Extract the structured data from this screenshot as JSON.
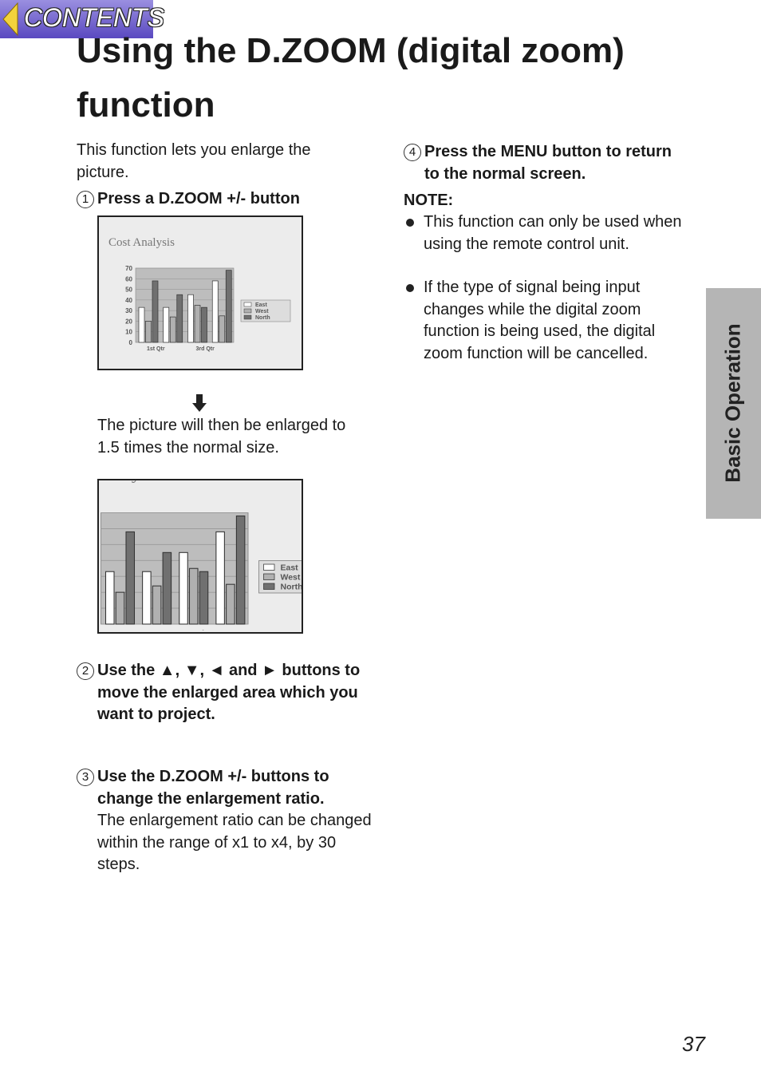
{
  "header": {
    "button": "CONTENTS",
    "title": "Using the D.ZOOM (digital zoom) function"
  },
  "side_tab": "Basic Operation",
  "intro": "This function lets you enlarge the picture.",
  "steps": [
    {
      "number": "1",
      "heading": "Press a D.ZOOM +/- button",
      "body": "The picture will then be enlarged to 1.5 times the normal size."
    },
    {
      "number": "2",
      "heading": "Use the ▲, ▼, ◄ and ► buttons to move the enlarged area which you want to project."
    },
    {
      "number": "3",
      "heading": "Use the D.ZOOM +/- buttons to change the enlargement ratio.",
      "body": "The enlargement ratio can be changed within the range of x1 to x4, by 30 steps."
    },
    {
      "number": "4",
      "heading": "Press the MENU button to return to the normal screen."
    }
  ],
  "note": {
    "label": "NOTE:",
    "items": [
      "This function can only be used when using the remote control unit.",
      "If the type of signal being input changes while the digital zoom function is being used, the digital zoom function will be cancelled."
    ]
  },
  "illustration": {
    "type": "bar",
    "title": "Cost Analysis",
    "categories": [
      "1st Qtr",
      null,
      "3rd Qtr",
      null
    ],
    "series": [
      {
        "name": "East",
        "color": "#ffffff",
        "values": [
          33,
          33,
          45,
          58
        ]
      },
      {
        "name": "West",
        "color": "#b0b0b0",
        "values": [
          20,
          24,
          35,
          25
        ]
      },
      {
        "name": "North",
        "color": "#707070",
        "values": [
          58,
          45,
          33,
          68
        ]
      }
    ],
    "ylim": [
      0,
      70
    ],
    "yticks": [
      0,
      10,
      20,
      30,
      40,
      50,
      60,
      70
    ]
  },
  "page_number": "37"
}
